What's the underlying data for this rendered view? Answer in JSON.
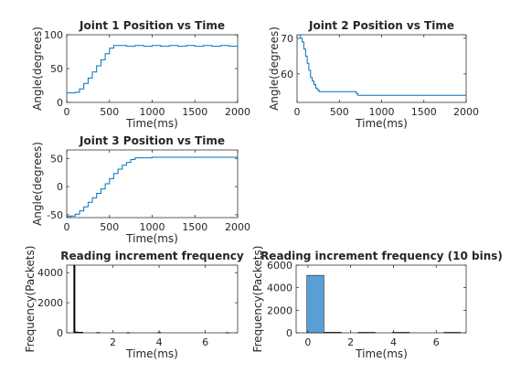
{
  "figure": {
    "background": "#ffffff"
  },
  "chart_data": [
    {
      "id": "j1",
      "type": "line",
      "title": "Joint 1 Position vs Time",
      "xlabel": "Time(ms)",
      "ylabel": "Angle(degrees)",
      "xlim": [
        0,
        2000
      ],
      "ylim": [
        0,
        100
      ],
      "xticks": [
        0,
        500,
        1000,
        1500,
        2000
      ],
      "yticks": [
        0,
        50,
        100
      ],
      "step": true,
      "color": "#0072bd",
      "series": [
        {
          "x": [
            0,
            50,
            100,
            150,
            200,
            250,
            300,
            350,
            400,
            450,
            500,
            550,
            600,
            700,
            800,
            900,
            1000,
            1100,
            1200,
            1300,
            1400,
            1500,
            1600,
            1700,
            1800,
            1900,
            2000
          ],
          "y": [
            14,
            14,
            15,
            20,
            28,
            36,
            45,
            54,
            63,
            72,
            80,
            84,
            84,
            83,
            84,
            83,
            84,
            83,
            84,
            83,
            84,
            83,
            84,
            83,
            84,
            83,
            84
          ]
        }
      ]
    },
    {
      "id": "j2",
      "type": "line",
      "title": "Joint 2 Position vs Time",
      "xlabel": "Time(ms)",
      "ylabel": "Angle(degrees)",
      "xlim": [
        0,
        2000
      ],
      "ylim": [
        52,
        71
      ],
      "xticks": [
        0,
        500,
        1000,
        1500,
        2000
      ],
      "yticks": [
        60,
        70
      ],
      "step": true,
      "color": "#0072bd",
      "series": [
        {
          "x": [
            0,
            20,
            40,
            60,
            80,
            100,
            120,
            140,
            160,
            180,
            200,
            220,
            240,
            260,
            300,
            500,
            600,
            700,
            720,
            800,
            1000,
            1500,
            2000
          ],
          "y": [
            71,
            71,
            70,
            69,
            67,
            65,
            63,
            61,
            59,
            58,
            57,
            56,
            55.5,
            55,
            55,
            55,
            55,
            54.5,
            54,
            54,
            54,
            54,
            54
          ]
        }
      ]
    },
    {
      "id": "j3",
      "type": "line",
      "title": "Joint 3 Position vs Time",
      "xlabel": "Time(ms)",
      "ylabel": "Angle(degrees)",
      "xlim": [
        0,
        2000
      ],
      "ylim": [
        -55,
        65
      ],
      "xticks": [
        0,
        500,
        1000,
        1500,
        2000
      ],
      "yticks": [
        -50,
        0,
        50
      ],
      "step": true,
      "color": "#0072bd",
      "series": [
        {
          "x": [
            0,
            50,
            100,
            150,
            200,
            250,
            300,
            350,
            400,
            450,
            500,
            550,
            600,
            650,
            700,
            750,
            800,
            1000,
            1500,
            2000
          ],
          "y": [
            -53,
            -52,
            -49,
            -43,
            -36,
            -28,
            -20,
            -12,
            -4,
            5,
            14,
            23,
            31,
            38,
            43,
            48,
            51,
            52,
            52,
            52
          ]
        }
      ]
    },
    {
      "id": "h1",
      "type": "bar",
      "title": "Reading increment frequency",
      "xlabel": "Time(ms)",
      "ylabel": "Frequency(Packets)",
      "xlim": [
        0,
        7.4
      ],
      "ylim": [
        0,
        4500
      ],
      "xticks": [
        2,
        4,
        6
      ],
      "yticks": [
        0,
        2000,
        4000
      ],
      "fill": "#000000",
      "bins": [
        {
          "x0": 0.3,
          "x1": 0.36,
          "value": 4500
        },
        {
          "x0": 0.36,
          "x1": 0.5,
          "value": 60
        },
        {
          "x0": 0.5,
          "x1": 0.7,
          "value": 40
        },
        {
          "x0": 1.3,
          "x1": 1.42,
          "value": 25
        },
        {
          "x0": 2.6,
          "x1": 2.72,
          "value": 20
        },
        {
          "x0": 3.95,
          "x1": 4.07,
          "value": 30
        },
        {
          "x0": 6.9,
          "x1": 7.02,
          "value": 20
        }
      ]
    },
    {
      "id": "h2",
      "type": "bar",
      "title": "Reading increment frequency (10 bins)",
      "xlabel": "Time(ms)",
      "ylabel": "Frequency(Packets)",
      "xlim": [
        -0.55,
        7.4
      ],
      "ylim": [
        0,
        6000
      ],
      "xticks": [
        0,
        2,
        4,
        6
      ],
      "yticks": [
        0,
        2000,
        4000,
        6000
      ],
      "fill": "#5a9fd4",
      "bins": [
        {
          "x0": -0.05,
          "x1": 0.75,
          "value": 5100
        },
        {
          "x0": 0.75,
          "x1": 1.55,
          "value": 60
        },
        {
          "x0": 2.35,
          "x1": 3.15,
          "value": 40
        },
        {
          "x0": 3.95,
          "x1": 4.75,
          "value": 40
        },
        {
          "x0": 6.35,
          "x1": 7.15,
          "value": 40
        }
      ]
    }
  ]
}
